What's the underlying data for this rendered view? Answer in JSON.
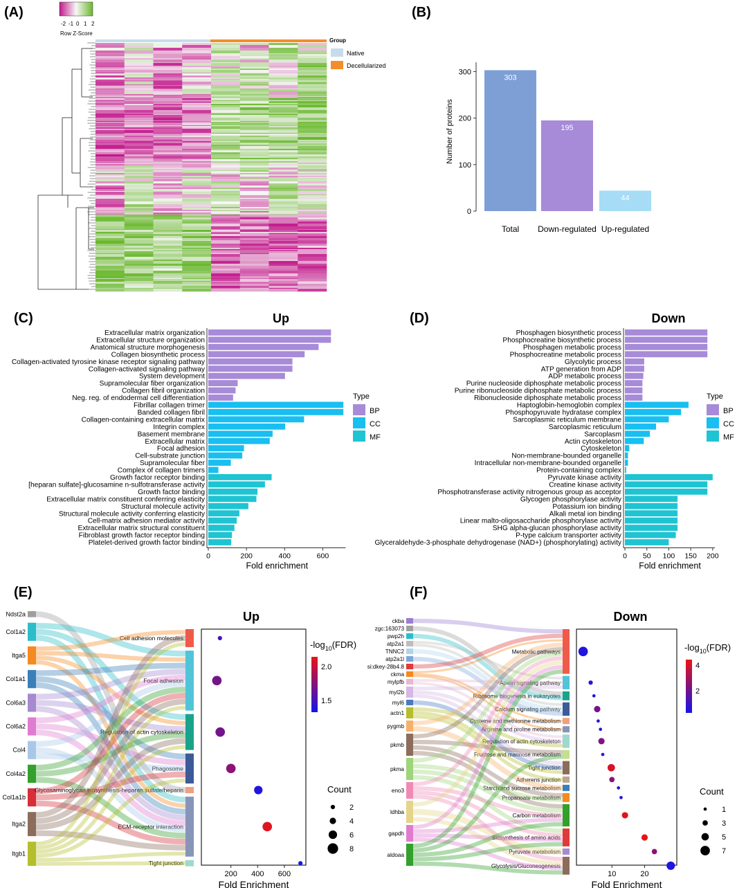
{
  "panels": {
    "a": "(A)",
    "b": "(B)",
    "c": "(C)",
    "d": "(D)",
    "e": "(E)",
    "f": "(F)"
  },
  "heatmap": {
    "scale_title": "Row Z-Score",
    "scale_ticks": [
      "-2",
      "-1",
      "0",
      "1",
      "2"
    ],
    "group_title": "Group",
    "groups": [
      {
        "label": "Native",
        "color": "#c6dcec"
      },
      {
        "label": "Decellularized",
        "color": "#f28e2b"
      }
    ],
    "colors": {
      "low": "#c2188b",
      "mid": "#f7f7f7",
      "high": "#6ab82e"
    },
    "n_columns": 8
  },
  "chart_data": [
    {
      "id": "B",
      "type": "bar",
      "categories": [
        "Total",
        "Down-regulated",
        "Up-regulated"
      ],
      "values": [
        303,
        195,
        44
      ],
      "colors": [
        "#7d9fd6",
        "#a78bd8",
        "#a6dcf5"
      ],
      "ylabel": "Number of proteins",
      "ylim": [
        0,
        320
      ],
      "yticks": [
        "0",
        "100",
        "200",
        "300"
      ]
    },
    {
      "id": "C",
      "type": "bar",
      "orientation": "horizontal",
      "title": "Up",
      "xlabel": "Fold enrichment",
      "xlim": [
        0,
        720
      ],
      "xticks": [
        "0",
        "200",
        "400",
        "600"
      ],
      "legend_title": "Type",
      "legend": [
        "BP",
        "CC",
        "MF"
      ],
      "bars": [
        {
          "term": "Extracellular matrix organization",
          "value": 643,
          "type": "BP"
        },
        {
          "term": "Extracellular structure organization",
          "value": 643,
          "type": "BP"
        },
        {
          "term": "Anatomical structure morphogenesis",
          "value": 578,
          "type": "BP"
        },
        {
          "term": "Collagen biosynthetic process",
          "value": 505,
          "type": "BP"
        },
        {
          "term": "Collagen-activated tyrosine kinase receptor signaling pathway",
          "value": 441,
          "type": "BP"
        },
        {
          "term": "Collagen-activated signaling pathway",
          "value": 441,
          "type": "BP"
        },
        {
          "term": "System development",
          "value": 402,
          "type": "BP"
        },
        {
          "term": "Supramolecular fiber organization",
          "value": 154,
          "type": "BP"
        },
        {
          "term": "Collagen fibril organization",
          "value": 143,
          "type": "BP"
        },
        {
          "term": "Neg. reg. of endodermal cell differentiation",
          "value": 130,
          "type": "BP"
        },
        {
          "term": "Fibrillar collagen trimer",
          "value": 708,
          "type": "CC"
        },
        {
          "term": "Banded collagen fibril",
          "value": 708,
          "type": "CC"
        },
        {
          "term": "Collagen-containing extracellular matrix",
          "value": 502,
          "type": "CC"
        },
        {
          "term": "Integrin complex",
          "value": 403,
          "type": "CC"
        },
        {
          "term": "Basement membrane",
          "value": 337,
          "type": "CC"
        },
        {
          "term": "Extracellular matrix",
          "value": 322,
          "type": "CC"
        },
        {
          "term": "Focal adhesion",
          "value": 187,
          "type": "CC"
        },
        {
          "term": "Cell-substrate junction",
          "value": 178,
          "type": "CC"
        },
        {
          "term": "Supramolecular fiber",
          "value": 118,
          "type": "CC"
        },
        {
          "term": "Complex of collagen trimers",
          "value": 53,
          "type": "CC"
        },
        {
          "term": "Growth factor receptor binding",
          "value": 332,
          "type": "MF"
        },
        {
          "term": "[heparan sulfate]-glucosamine n-sulfotransferase activity",
          "value": 297,
          "type": "MF"
        },
        {
          "term": "Growth factor binding",
          "value": 258,
          "type": "MF"
        },
        {
          "term": "Extracellular matrix constituent conferring elasticity",
          "value": 252,
          "type": "MF"
        },
        {
          "term": "Structural molecule activity",
          "value": 210,
          "type": "MF"
        },
        {
          "term": "Structural molecule activity conferring elasticity",
          "value": 163,
          "type": "MF"
        },
        {
          "term": "Cell-matrix adhesion mediator activity",
          "value": 149,
          "type": "MF"
        },
        {
          "term": "Extracellular matrix structural constituent",
          "value": 137,
          "type": "MF"
        },
        {
          "term": "Fibroblast growth factor receptor binding",
          "value": 124,
          "type": "MF"
        },
        {
          "term": "Platelet-derived growth factor binding",
          "value": 120,
          "type": "MF"
        }
      ]
    },
    {
      "id": "D",
      "type": "bar",
      "orientation": "horizontal",
      "title": "Down",
      "xlabel": "Fold enrichment",
      "xlim": [
        0,
        205
      ],
      "xticks": [
        "0",
        "50",
        "100",
        "150",
        "200"
      ],
      "legend_title": "Type",
      "legend": [
        "BP",
        "CC",
        "MF"
      ],
      "bars": [
        {
          "term": "Phosphagen biosynthetic process",
          "value": 188,
          "type": "BP"
        },
        {
          "term": "Phosphocreatine biosynthetic process",
          "value": 188,
          "type": "BP"
        },
        {
          "term": "Phosphagen metabolic process",
          "value": 188,
          "type": "BP"
        },
        {
          "term": "Phosphocreatine metabolic process",
          "value": 188,
          "type": "BP"
        },
        {
          "term": "Glycolytic process",
          "value": 44,
          "type": "BP"
        },
        {
          "term": "ATP generation from ADP",
          "value": 44,
          "type": "BP"
        },
        {
          "term": "ADP metabolic process",
          "value": 42,
          "type": "BP"
        },
        {
          "term": "Purine nucleoside diphosphate metabolic process",
          "value": 40,
          "type": "BP"
        },
        {
          "term": "Purine ribonucleoside diphosphate metabolic process",
          "value": 40,
          "type": "BP"
        },
        {
          "term": "Ribonucleoside diphosphate metabolic process",
          "value": 40,
          "type": "BP"
        },
        {
          "term": "Haptoglobin-hemoglobin complex",
          "value": 145,
          "type": "CC"
        },
        {
          "term": "Phosphopyruvate hydratase complex",
          "value": 128,
          "type": "CC"
        },
        {
          "term": "Sarcoplasmic reticulum membrane",
          "value": 100,
          "type": "CC"
        },
        {
          "term": "Sarcoplasmic reticulum",
          "value": 71,
          "type": "CC"
        },
        {
          "term": "Sarcoplasm",
          "value": 57,
          "type": "CC"
        },
        {
          "term": "Actin cytoskeleton",
          "value": 43,
          "type": "CC"
        },
        {
          "term": "Cytoskeleton",
          "value": 10,
          "type": "CC"
        },
        {
          "term": "Non-membrane-bounded organelle",
          "value": 7,
          "type": "CC"
        },
        {
          "term": "Intracellular non-membrane-bounded organelle",
          "value": 7,
          "type": "CC"
        },
        {
          "term": "Protein-containing complex",
          "value": 3,
          "type": "CC"
        },
        {
          "term": "Pyruvate kinase activity",
          "value": 200,
          "type": "MF"
        },
        {
          "term": "Creatine kinase activity",
          "value": 188,
          "type": "MF"
        },
        {
          "term": "Phosphotransferase activity nitrogenous group as acceptor",
          "value": 188,
          "type": "MF"
        },
        {
          "term": "Glycogen phosphorylase activity",
          "value": 120,
          "type": "MF"
        },
        {
          "term": "Potassium ion binding",
          "value": 120,
          "type": "MF"
        },
        {
          "term": "Alkali metal ion binding",
          "value": 120,
          "type": "MF"
        },
        {
          "term": "Linear malto-oligosaccharide phosphorylase activity",
          "value": 120,
          "type": "MF"
        },
        {
          "term": "SHG alpha-glucan phosphorylase activity",
          "value": 120,
          "type": "MF"
        },
        {
          "term": "P-type calcium transporter activity",
          "value": 116,
          "type": "MF"
        },
        {
          "term": "Glyceraldehyde-3-phosphate dehydrogenase (NAD+) (phosphorylating) activity",
          "value": 100,
          "type": "MF"
        }
      ]
    },
    {
      "id": "E",
      "type": "scatter",
      "title": "Up",
      "xlabel": "Fold Enrichment",
      "xlim": [
        0,
        740
      ],
      "xticks": [
        200,
        400,
        600
      ],
      "color_title": "-log",
      "color_sub": "10",
      "color_tail": "(FDR)",
      "color_ticks": [
        "2.0",
        "1.5"
      ],
      "color_range": [
        1.3,
        2.2
      ],
      "size_title": "Count",
      "size_legend": [
        "2",
        "4",
        "6",
        "8"
      ],
      "genes": [
        "Ndst2a",
        "Col1a2",
        "Itga5",
        "Col1a1",
        "Col6a3",
        "Col6a2",
        "Col4",
        "Col4a2",
        "Col1a1b",
        "Itga2",
        "Itgb1"
      ],
      "gene_colors": [
        "#9e9e9e",
        "#2bbdc9",
        "#f58a20",
        "#3a7fb8",
        "#a58ad0",
        "#e07ccf",
        "#a9c8e8",
        "#33a02c",
        "#d62f3a",
        "#8c6d5b",
        "#b5be2b"
      ],
      "gene_weights": [
        1,
        3,
        3,
        3,
        3,
        3,
        3,
        3,
        3,
        4,
        4
      ],
      "pathways": [
        {
          "name": "Cell adhesion molecules",
          "fold": 118,
          "fdr": 1.5,
          "count": 2,
          "color": "#f05a4a"
        },
        {
          "name": "Focal adhesion",
          "fold": 95,
          "fdr": 1.7,
          "count": 7,
          "color": "#51c4d8"
        },
        {
          "name": "Regulation of actin cytoskeleton",
          "fold": 120,
          "fdr": 1.7,
          "count": 7,
          "color": "#19a38a"
        },
        {
          "name": "Phagosome",
          "fold": 200,
          "fdr": 1.8,
          "count": 7,
          "color": "#3d5a98"
        },
        {
          "name": "Glycosaminoglycan biosynthesis-heparan sulfate/heparin",
          "fold": 405,
          "fdr": 1.35,
          "count": 6,
          "color": "#f0a082"
        },
        {
          "name": "ECM-receptor interaction",
          "fold": 472,
          "fdr": 2.15,
          "count": 7,
          "color": "#8795b8"
        },
        {
          "name": "Tight junction",
          "fold": 720,
          "fdr": 1.3,
          "count": 2,
          "color": "#9fd8cc"
        }
      ],
      "links": [
        [
          0,
          4
        ],
        [
          1,
          1
        ],
        [
          1,
          2
        ],
        [
          1,
          5
        ],
        [
          2,
          0
        ],
        [
          2,
          1
        ],
        [
          2,
          2
        ],
        [
          2,
          5
        ],
        [
          3,
          1
        ],
        [
          3,
          3
        ],
        [
          3,
          5
        ],
        [
          4,
          1
        ],
        [
          4,
          2
        ],
        [
          4,
          5
        ],
        [
          5,
          1
        ],
        [
          5,
          3
        ],
        [
          5,
          5
        ],
        [
          6,
          1
        ],
        [
          6,
          5
        ],
        [
          6,
          3
        ],
        [
          7,
          1
        ],
        [
          7,
          2
        ],
        [
          7,
          5
        ],
        [
          8,
          1
        ],
        [
          8,
          3
        ],
        [
          8,
          5
        ],
        [
          9,
          0
        ],
        [
          9,
          1
        ],
        [
          9,
          2
        ],
        [
          9,
          5
        ],
        [
          10,
          0
        ],
        [
          10,
          1
        ],
        [
          10,
          2
        ],
        [
          10,
          3
        ],
        [
          10,
          5
        ],
        [
          10,
          6
        ]
      ]
    },
    {
      "id": "F",
      "type": "scatter",
      "title": "Down",
      "xlabel": "Fold Enrichment",
      "xlim": [
        0,
        29
      ],
      "xticks": [
        10,
        20
      ],
      "color_title": "-log",
      "color_sub": "10",
      "color_tail": "(FDR)",
      "color_ticks": [
        "4",
        "2"
      ],
      "color_range": [
        1,
        5
      ],
      "size_title": "Count",
      "size_legend": [
        "1",
        "3",
        "5",
        "7"
      ],
      "genes": [
        "ckba",
        "zgc:163073",
        "pwp2h",
        "atp2a1",
        "TNNC2",
        "atp2a1l",
        "si:dkey-28b4.8",
        "ckma",
        "mylpfb",
        "myl2b",
        "myl6",
        "actn1",
        "pygmb",
        "pkmb",
        "pkma",
        "eno3",
        "ldhba",
        "gapdh",
        "aldoaa"
      ],
      "gene_colors": [
        "#9b7ed1",
        "#a0a0a0",
        "#2bbdc9",
        "#bdbdbd",
        "#b0d4ec",
        "#7da7d9",
        "#e03a3a",
        "#f5891f",
        "#e9b6d4",
        "#d5b8e4",
        "#4a7abf",
        "#b5be2b",
        "#f7b06a",
        "#8c6d5b",
        "#9ed47a",
        "#f08ab5",
        "#e5d58a",
        "#e07ccf",
        "#33a02c"
      ],
      "gene_weights": [
        1,
        1,
        1,
        1,
        1,
        1,
        1,
        1,
        1,
        2,
        1,
        2,
        2,
        4,
        4,
        3,
        4,
        3,
        4
      ],
      "pathways": [
        {
          "name": "Metabolic pathways",
          "fold": 1.2,
          "fdr": 1.2,
          "count": 7,
          "color": "#f05a4a"
        },
        {
          "name": "Apelin signaling pathway",
          "fold": 3.5,
          "fdr": 1.3,
          "count": 2,
          "color": "#51c4d8"
        },
        {
          "name": "Ribosome biogenesis in eukaryotes",
          "fold": 4.5,
          "fdr": 1.2,
          "count": 1,
          "color": "#19a38a"
        },
        {
          "name": "Calcium signaling pathway",
          "fold": 5.5,
          "fdr": 2.8,
          "count": 4,
          "color": "#3d5a98"
        },
        {
          "name": "Cysteine and methionine metabolism",
          "fold": 5.8,
          "fdr": 1.3,
          "count": 1,
          "color": "#f0a082"
        },
        {
          "name": "Arginine and proline metabolism",
          "fold": 6.5,
          "fdr": 1.3,
          "count": 1,
          "color": "#8795b8"
        },
        {
          "name": "Regulation of actin cytoskeleton",
          "fold": 6.8,
          "fdr": 3.0,
          "count": 4,
          "color": "#9fd8cc"
        },
        {
          "name": "Fructose and mannose metabolism",
          "fold": 7.2,
          "fdr": 1.3,
          "count": 1,
          "color": "#c5e08a"
        },
        {
          "name": "Tight junction",
          "fold": 9.8,
          "fdr": 4.6,
          "count": 5,
          "color": "#8c6d5b"
        },
        {
          "name": "Adherens junction",
          "fold": 10,
          "fdr": 3.2,
          "count": 3,
          "color": "#bca68e"
        },
        {
          "name": "Starch and sucrose metabolism",
          "fold": 12,
          "fdr": 1.4,
          "count": 1,
          "color": "#3a7fb8"
        },
        {
          "name": "Propanoate metabolism",
          "fold": 12.8,
          "fdr": 1.3,
          "count": 1,
          "color": "#f58a20"
        },
        {
          "name": "Carbon metabolism",
          "fold": 14,
          "fdr": 4.8,
          "count": 4,
          "color": "#33a02c"
        },
        {
          "name": "Biosynthesis of amino acids",
          "fold": 20,
          "fdr": 4.9,
          "count": 4,
          "color": "#e03a3a"
        },
        {
          "name": "Pyruvate metabolism",
          "fold": 23,
          "fdr": 3.2,
          "count": 3,
          "color": "#a58ad0"
        },
        {
          "name": "Glycolysis/Gluconeogenesis",
          "fold": 28,
          "fdr": 1.2,
          "count": 6,
          "color": "#8c6d5b"
        }
      ],
      "links": [
        [
          0,
          0
        ],
        [
          1,
          2
        ],
        [
          2,
          2
        ],
        [
          3,
          1
        ],
        [
          3,
          3
        ],
        [
          4,
          3
        ],
        [
          5,
          3
        ],
        [
          6,
          0
        ],
        [
          7,
          0
        ],
        [
          7,
          4
        ],
        [
          7,
          5
        ],
        [
          8,
          1
        ],
        [
          8,
          6
        ],
        [
          9,
          1
        ],
        [
          9,
          6
        ],
        [
          9,
          8
        ],
        [
          10,
          8
        ],
        [
          11,
          6
        ],
        [
          11,
          8
        ],
        [
          11,
          9
        ],
        [
          12,
          0
        ],
        [
          12,
          10
        ],
        [
          13,
          0
        ],
        [
          13,
          7
        ],
        [
          13,
          11
        ],
        [
          13,
          12
        ],
        [
          14,
          0
        ],
        [
          14,
          11
        ],
        [
          14,
          12
        ],
        [
          14,
          13
        ],
        [
          15,
          0
        ],
        [
          15,
          12
        ],
        [
          15,
          13
        ],
        [
          15,
          15
        ],
        [
          16,
          0
        ],
        [
          16,
          14
        ],
        [
          16,
          15
        ],
        [
          17,
          0
        ],
        [
          17,
          12
        ],
        [
          17,
          13
        ],
        [
          17,
          15
        ],
        [
          18,
          0
        ],
        [
          18,
          7
        ],
        [
          18,
          12
        ],
        [
          18,
          13
        ],
        [
          18,
          15
        ]
      ]
    }
  ]
}
